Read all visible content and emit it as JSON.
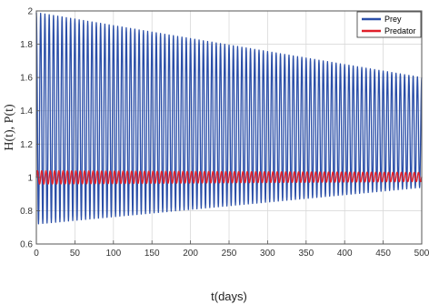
{
  "chart_data": {
    "type": "line",
    "xlabel": "t(days)",
    "ylabel": "H(t), P(t)",
    "xlim": [
      0,
      500
    ],
    "ylim": [
      0.6,
      2
    ],
    "xticks": [
      0,
      50,
      100,
      150,
      200,
      250,
      300,
      350,
      400,
      450,
      500
    ],
    "yticks": [
      0.6,
      0.8,
      1,
      1.2,
      1.4,
      1.6,
      1.8,
      2
    ],
    "ytick_labels": [
      "0.6",
      "0.8",
      "1",
      "1.2",
      "1.4",
      "1.6",
      "1.8",
      "2"
    ],
    "grid": true,
    "legend_position": "top-right",
    "oscillation_cycles": 90,
    "series": [
      {
        "name": "Prey",
        "color": "#2a4ea8",
        "envelope_t": [
          0,
          500
        ],
        "envelope_max": [
          1.99,
          1.6
        ],
        "envelope_min": [
          0.72,
          0.94
        ]
      },
      {
        "name": "Predator",
        "color": "#e0202a",
        "envelope_t": [
          0,
          500
        ],
        "envelope_max": [
          1.04,
          1.03
        ],
        "envelope_min": [
          0.96,
          0.975
        ]
      }
    ]
  }
}
